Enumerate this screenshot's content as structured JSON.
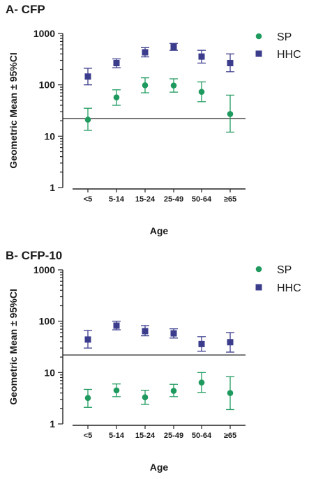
{
  "chart_data": [
    {
      "type": "scatter",
      "title": "A- CFP",
      "ylabel": "Geometric Mean ± 95%CI",
      "xlabel": "Age",
      "categories": [
        "<5",
        "5-14",
        "15-24",
        "25-49",
        "50-64",
        "≥65"
      ],
      "yscale": "log",
      "ylim": [
        1,
        1000
      ],
      "yticks": [
        "1",
        "10",
        "100",
        "1000"
      ],
      "reference_line": 22,
      "legend_position": "top-right",
      "series": [
        {
          "name": "SP",
          "color": "#1f9a5f",
          "marker": "circle",
          "values": [
            21,
            57,
            98,
            97,
            73,
            27
          ],
          "ci_low": [
            13,
            40,
            70,
            72,
            47,
            12
          ],
          "ci_high": [
            35,
            80,
            137,
            131,
            114,
            63
          ]
        },
        {
          "name": "HHC",
          "color": "#3b3c8c",
          "marker": "square",
          "values": [
            145,
            265,
            430,
            550,
            355,
            265
          ],
          "ci_low": [
            100,
            215,
            350,
            470,
            265,
            180
          ],
          "ci_high": [
            210,
            320,
            530,
            640,
            470,
            400
          ]
        }
      ]
    },
    {
      "type": "scatter",
      "title": "B- CFP-10",
      "ylabel": "Geometric Mean ± 95%CI",
      "xlabel": "Age",
      "categories": [
        "<5",
        "5-14",
        "15-24",
        "25-49",
        "50-64",
        "≥65"
      ],
      "yscale": "log",
      "ylim": [
        1,
        1000
      ],
      "yticks": [
        "1",
        "10",
        "100",
        "1000"
      ],
      "reference_line": 22,
      "legend_position": "top-right",
      "series": [
        {
          "name": "SP",
          "color": "#1f9a5f",
          "marker": "circle",
          "values": [
            3.2,
            4.5,
            3.3,
            4.4,
            6.4,
            4.0
          ],
          "ci_low": [
            2.1,
            3.4,
            2.4,
            3.4,
            4.1,
            1.9
          ],
          "ci_high": [
            4.7,
            6.0,
            4.5,
            5.9,
            10.0,
            8.3
          ]
        },
        {
          "name": "HHC",
          "color": "#3b3c8c",
          "marker": "square",
          "values": [
            44,
            82,
            64,
            58,
            36,
            39
          ],
          "ci_low": [
            30,
            68,
            52,
            47,
            26,
            25
          ],
          "ci_high": [
            66,
            100,
            82,
            71,
            50,
            60
          ]
        }
      ]
    }
  ]
}
